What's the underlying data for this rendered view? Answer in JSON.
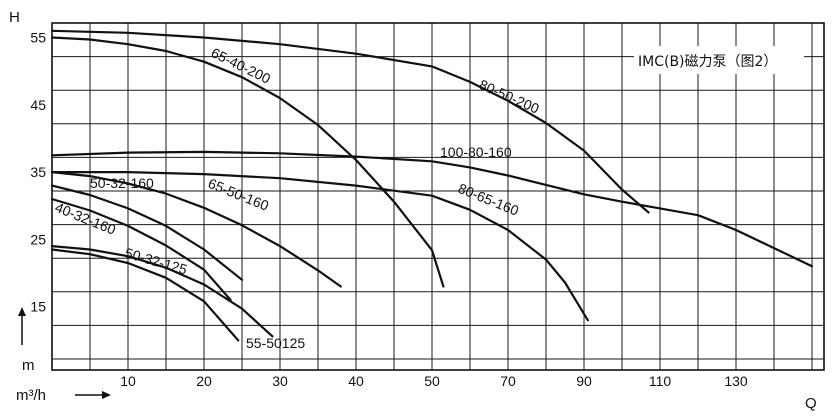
{
  "chart_data": {
    "type": "line",
    "title": "IMC(B)磁力泵（图2）",
    "ylabel": "H",
    "ylabel_unit": "m",
    "xlabel": "Q",
    "xlabel_unit": "m³/h",
    "grid": true,
    "x_ticks": [
      "10",
      "20",
      "30",
      "40",
      "50",
      "70",
      "90",
      "110",
      "130"
    ],
    "y_ticks": [
      "55",
      "45",
      "35",
      "25",
      "15"
    ],
    "series": [
      {
        "name": "65-40-200",
        "x": [
          0,
          5,
          10,
          15,
          20,
          25,
          30,
          35,
          40,
          45,
          50,
          53
        ],
        "y": [
          55.0,
          54.7,
          54.0,
          53.0,
          51.4,
          49.1,
          46.0,
          42.0,
          36.8,
          30.6,
          23.4,
          18.0
        ]
      },
      {
        "name": "80-50-200",
        "x": [
          0,
          10,
          20,
          30,
          40,
          50,
          60,
          70,
          80,
          90,
          100,
          107
        ],
        "y": [
          56.0,
          55.7,
          55.0,
          54.0,
          52.6,
          50.7,
          48.4,
          45.6,
          42.3,
          38.2,
          32.4,
          29.0
        ]
      },
      {
        "name": "100-80-160",
        "x": [
          0,
          10,
          20,
          30,
          40,
          50,
          60,
          70,
          80,
          90,
          100,
          110,
          120,
          130,
          140,
          150
        ],
        "y": [
          37.5,
          37.9,
          38.0,
          37.8,
          37.3,
          36.6,
          35.7,
          34.5,
          33.1,
          31.7,
          30.6,
          29.6,
          28.6,
          26.4,
          23.7,
          21.0
        ]
      },
      {
        "name": "80-65-160",
        "x": [
          0,
          10,
          20,
          30,
          40,
          50,
          60,
          70,
          80,
          85,
          91
        ],
        "y": [
          35.0,
          35.0,
          34.7,
          34.1,
          33.0,
          31.5,
          29.4,
          26.4,
          22.0,
          18.6,
          13.0
        ]
      },
      {
        "name": "65-50-160",
        "x": [
          0,
          5,
          10,
          15,
          20,
          25,
          30,
          35,
          38
        ],
        "y": [
          35.0,
          34.4,
          33.3,
          31.8,
          29.7,
          27.1,
          24.0,
          20.4,
          18.0
        ]
      },
      {
        "name": "50-32-160",
        "x": [
          0,
          5,
          10,
          15,
          20,
          25
        ],
        "y": [
          33.0,
          31.6,
          29.6,
          27.0,
          23.5,
          19.0
        ]
      },
      {
        "name": "40-32-160",
        "x": [
          0,
          5,
          10,
          15,
          20,
          23.5
        ],
        "y": [
          31.0,
          29.3,
          27.0,
          24.1,
          20.5,
          16.0
        ]
      },
      {
        "name": "50-32-125",
        "x": [
          0,
          5,
          10,
          15,
          20,
          25,
          29
        ],
        "y": [
          24.0,
          23.5,
          22.5,
          20.8,
          18.3,
          14.7,
          10.6
        ]
      },
      {
        "name": "55-50125",
        "x": [
          0,
          5,
          10,
          15,
          20,
          24.5
        ],
        "y": [
          23.5,
          22.8,
          21.5,
          19.3,
          15.8,
          10.0
        ]
      }
    ]
  }
}
